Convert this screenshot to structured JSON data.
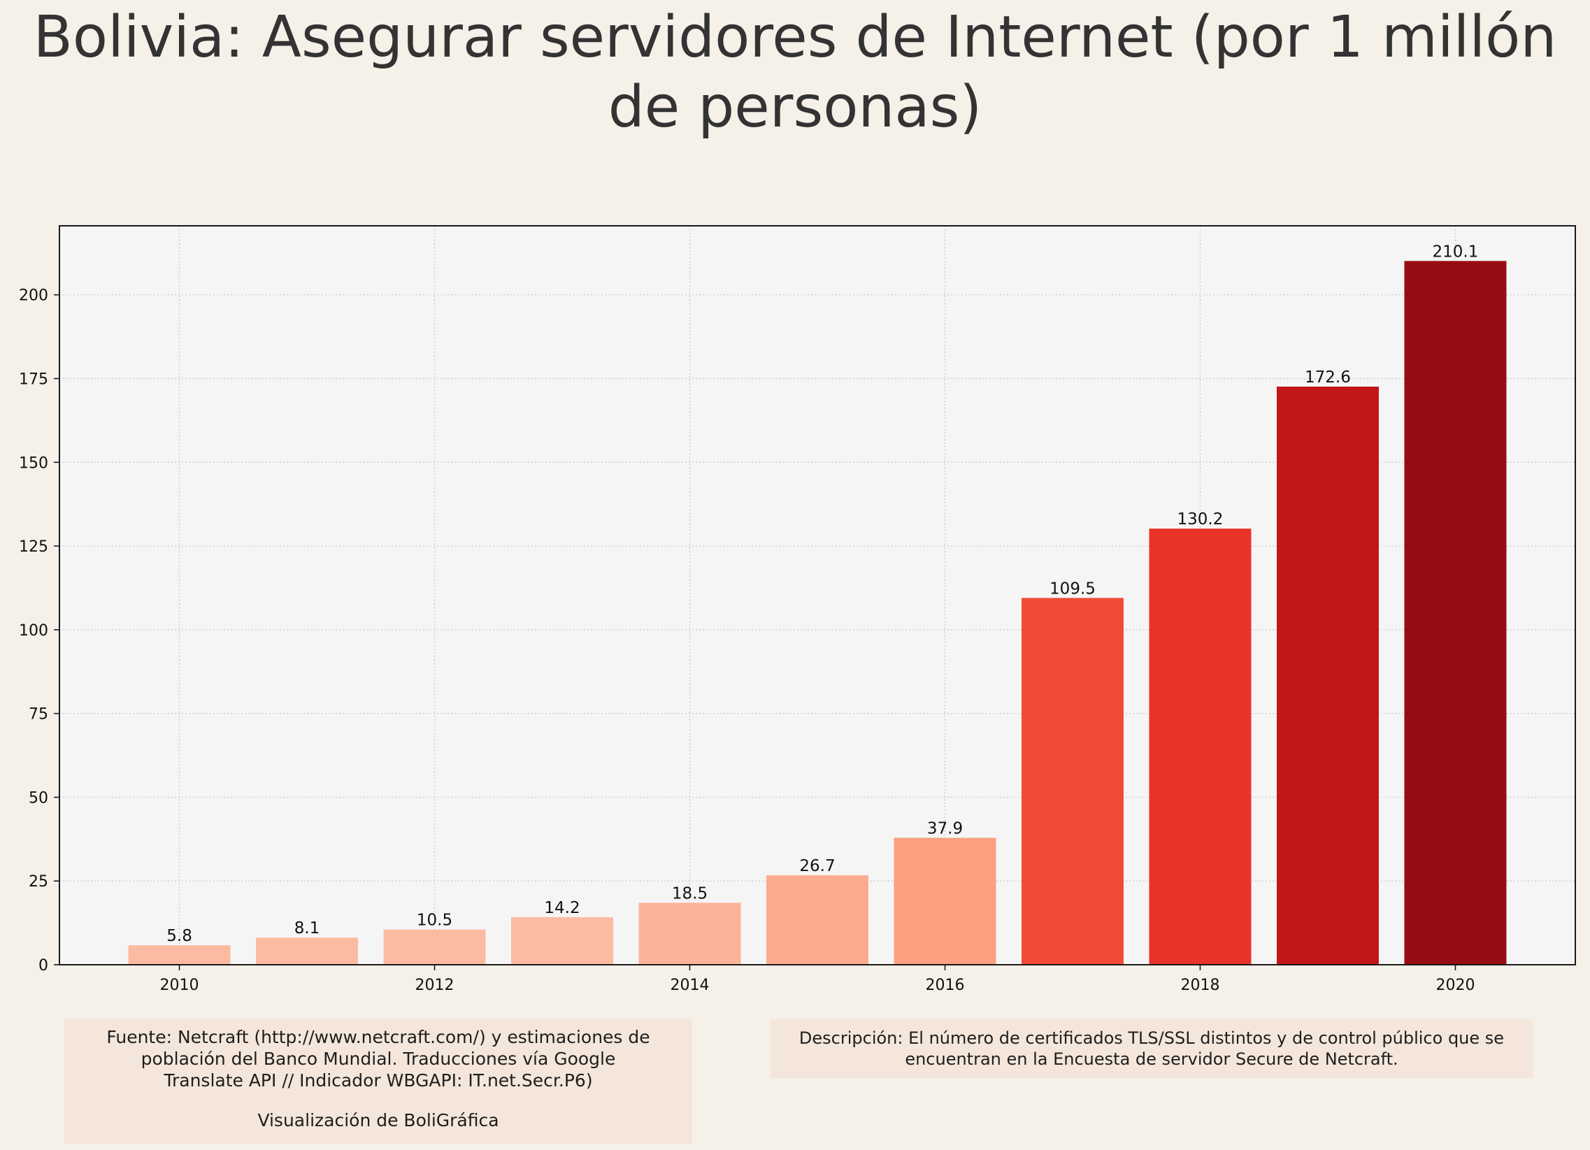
{
  "chart_data": {
    "type": "bar",
    "title": "Bolivia:  Asegurar servidores de Internet (por 1 millón de personas)",
    "xlabel": "",
    "ylabel": "",
    "categories": [
      2010,
      2011,
      2012,
      2013,
      2014,
      2015,
      2016,
      2017,
      2018,
      2019,
      2020
    ],
    "values": [
      5.8,
      8.1,
      10.5,
      14.2,
      18.5,
      26.7,
      37.9,
      109.5,
      130.2,
      172.6,
      210.1
    ],
    "value_labels": [
      "5.8",
      "8.1",
      "10.5",
      "14.2",
      "18.5",
      "26.7",
      "37.9",
      "109.5",
      "130.2",
      "172.6",
      "210.1"
    ],
    "bar_colors": [
      "#fcbba1",
      "#fcbba1",
      "#fcbba1",
      "#fcbba1",
      "#fcb398",
      "#fcab8f",
      "#fca082",
      "#f34a36",
      "#e83429",
      "#c2161b",
      "#980c13"
    ],
    "x_ticks": [
      2010,
      2012,
      2014,
      2016,
      2018,
      2020
    ],
    "x_tick_labels": [
      "2010",
      "2012",
      "2014",
      "2016",
      "2018",
      "2020"
    ],
    "y_ticks": [
      0,
      25,
      50,
      75,
      100,
      125,
      150,
      175,
      200
    ],
    "y_tick_labels": [
      "0",
      "25",
      "50",
      "75",
      "100",
      "125",
      "150",
      "175",
      "200"
    ],
    "xlim": [
      2009.06,
      2020.94
    ],
    "ylim": [
      0,
      220.6
    ],
    "grid": true,
    "legend": "none"
  },
  "colors": {
    "page_background": "#f5f0e8",
    "plot_background": "#f5f5f5",
    "grid": "#c8c8c8",
    "note_background": "#f4e6da"
  },
  "notes": {
    "source_line1": "Fuente: Netcraft (http://www.netcraft.com/) y estimaciones de",
    "source_line2": "población del Banco Mundial. Traducciones vía Google",
    "source_line3": "Translate API // Indicador WBGAPI: IT.net.Secr.P6)",
    "credit": "Visualización de BoliGráfica",
    "description_line1": "Descripción: El número de certificados TLS/SSL distintos y de control público que se",
    "description_line2": "encuentran en la Encuesta de servidor Secure de Netcraft."
  }
}
